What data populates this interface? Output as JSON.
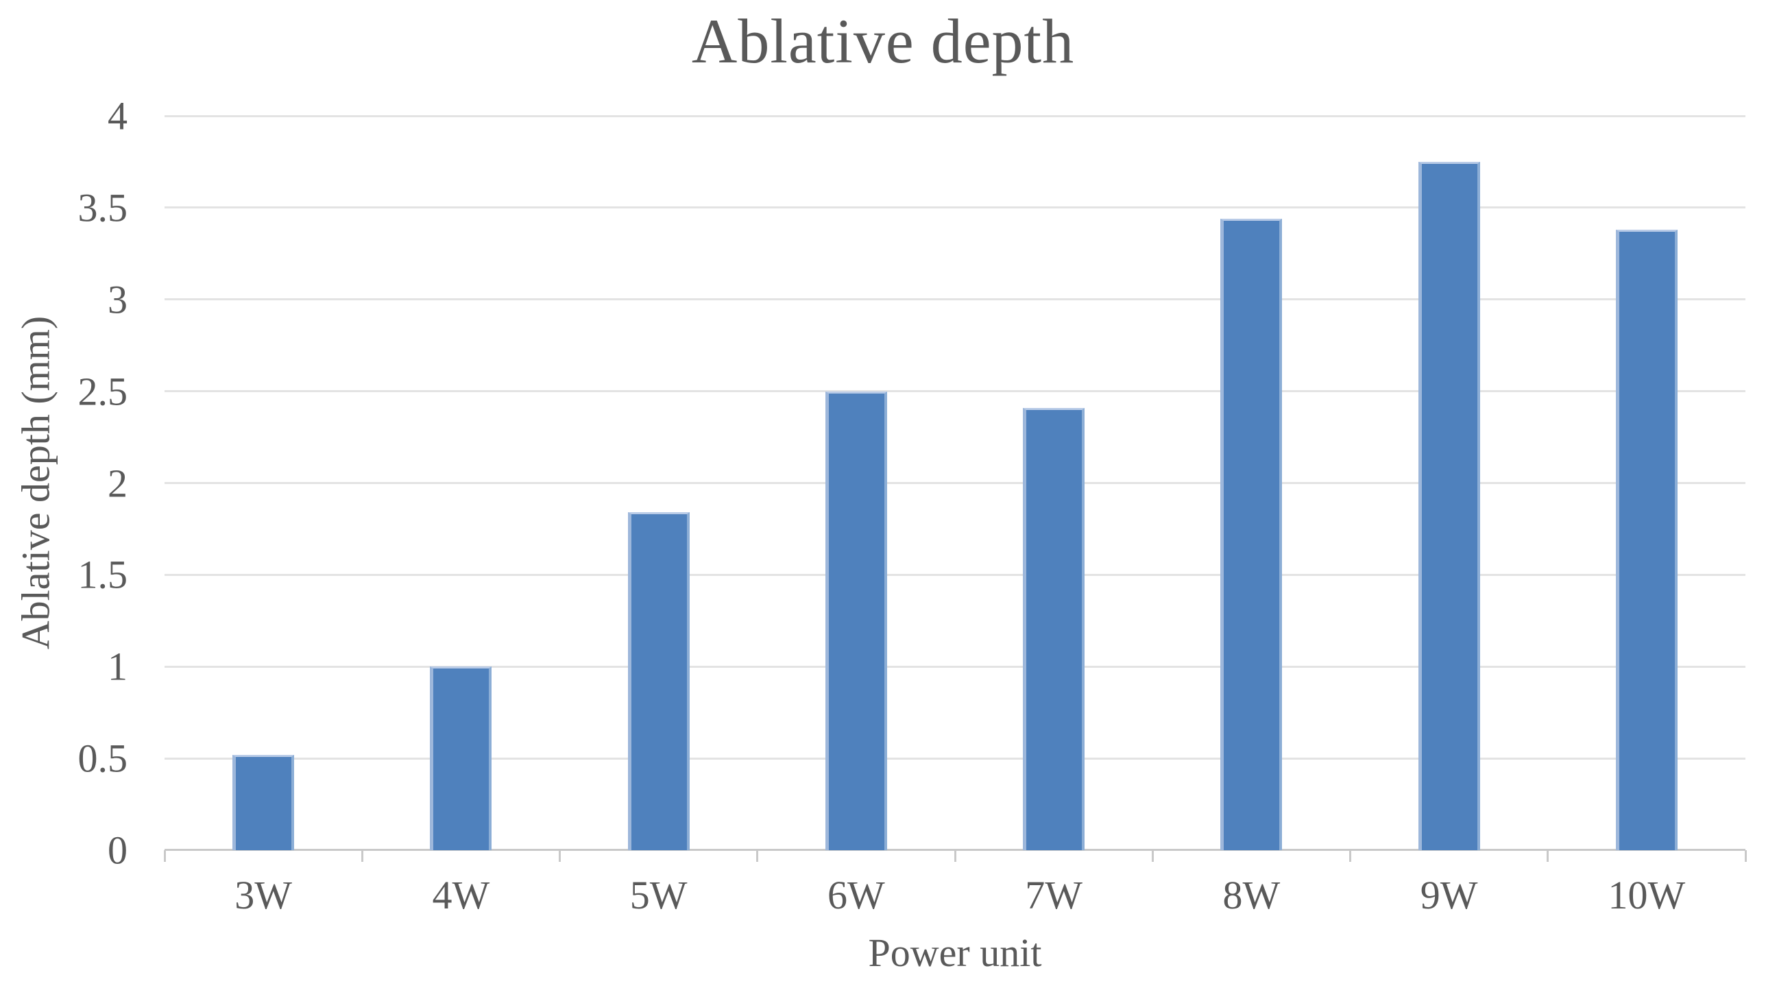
{
  "chart_data": {
    "type": "bar",
    "title": "Ablative depth",
    "xlabel": "Power unit",
    "ylabel": "Ablative depth (mm)",
    "categories": [
      "3W",
      "4W",
      "5W",
      "6W",
      "7W",
      "8W",
      "9W",
      "10W"
    ],
    "values": [
      0.52,
      1.0,
      1.84,
      2.5,
      2.41,
      3.44,
      3.75,
      3.38
    ],
    "series_name": "Ablative depth (mm)",
    "ylim": [
      0,
      4
    ],
    "ytick_step": 0.5,
    "ytick_labels": [
      "0",
      "0.5",
      "1",
      "1.5",
      "2",
      "2.5",
      "3",
      "3.5",
      "4"
    ],
    "grid": true,
    "legend_position": "none",
    "bar_color": "#4f81bd"
  },
  "colors": {
    "bar_fill": "#4f81bd",
    "bar_edge_light": "#9db7db",
    "gridline": "#e3e3e3",
    "axis_line": "#c9c9c9",
    "text": "#595959",
    "background": "#ffffff"
  }
}
